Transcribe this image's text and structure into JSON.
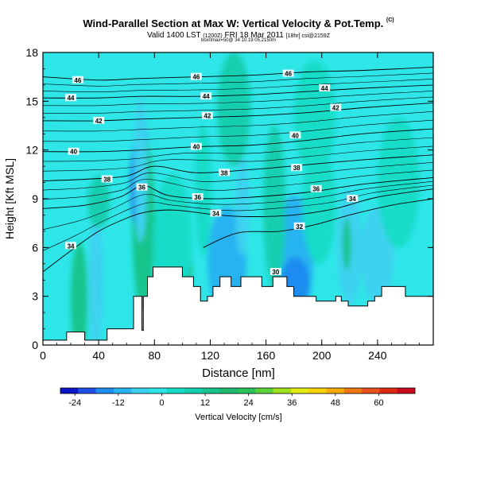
{
  "header": {
    "title": "Wind-Parallel Section at Max W: Vertical Velocity & Pot.Temp.",
    "title_mark": "(C)",
    "valid_prefix": "Valid 1400 LST",
    "valid_utc": "(1200Z)",
    "valid_date": "FRI 18 Mar 2011",
    "valid_suffix": "[18hr] csi@2159Z",
    "meta_line": "box0max=50@ 34 10.19 05,2150m"
  },
  "chart_data": {
    "type": "heatmap",
    "xlabel": "Distance [nm]",
    "ylabel": "Height [Kft MSL]",
    "xlim": [
      0,
      280
    ],
    "ylim": [
      0,
      18
    ],
    "x_ticks": [
      0,
      40,
      80,
      120,
      160,
      200,
      240
    ],
    "y_ticks": [
      0,
      3,
      6,
      9,
      12,
      15,
      18
    ],
    "colorbar": {
      "label": "Vertical Velocity [cm/s]",
      "ticks": [
        -24,
        -12,
        0,
        12,
        24,
        36,
        48,
        60
      ],
      "range": [
        -28,
        70
      ],
      "colors": [
        "#0a14c8",
        "#1e50e6",
        "#1e8cf0",
        "#28b4f0",
        "#3cd2ef",
        "#2ee6e8",
        "#14dcc8",
        "#14cfb0",
        "#19c48c",
        "#1eb96e",
        "#28c35a",
        "#5ad23c",
        "#a0e11e",
        "#e1ec14",
        "#f7d20a",
        "#f7aa0a",
        "#f07814",
        "#e8501e",
        "#dc2814",
        "#c80a1e"
      ]
    },
    "terrain": [
      [
        0,
        0.3
      ],
      [
        17,
        0.3
      ],
      [
        17,
        0.8
      ],
      [
        30,
        0.8
      ],
      [
        30,
        0.3
      ],
      [
        46,
        0.3
      ],
      [
        46,
        1.0
      ],
      [
        65,
        1.0
      ],
      [
        65,
        3.0
      ],
      [
        71,
        3.0
      ],
      [
        71,
        0.9
      ],
      [
        72,
        0.9
      ],
      [
        72,
        3.0
      ],
      [
        75,
        3.0
      ],
      [
        75,
        4.2
      ],
      [
        79,
        4.2
      ],
      [
        79,
        4.8
      ],
      [
        100,
        4.8
      ],
      [
        100,
        4.2
      ],
      [
        108,
        4.2
      ],
      [
        108,
        3.6
      ],
      [
        113,
        3.6
      ],
      [
        113,
        2.7
      ],
      [
        118,
        2.7
      ],
      [
        118,
        3.0
      ],
      [
        122,
        3.0
      ],
      [
        122,
        3.6
      ],
      [
        127,
        3.6
      ],
      [
        127,
        4.2
      ],
      [
        135,
        4.2
      ],
      [
        135,
        3.6
      ],
      [
        142,
        3.6
      ],
      [
        142,
        4.2
      ],
      [
        157,
        4.2
      ],
      [
        157,
        3.6
      ],
      [
        165,
        3.6
      ],
      [
        165,
        4.2
      ],
      [
        175,
        4.2
      ],
      [
        175,
        3.6
      ],
      [
        180,
        3.6
      ],
      [
        180,
        3.0
      ],
      [
        196,
        3.0
      ],
      [
        196,
        2.7
      ],
      [
        210,
        2.7
      ],
      [
        210,
        3.0
      ],
      [
        214,
        3.0
      ],
      [
        214,
        2.7
      ],
      [
        219,
        2.7
      ],
      [
        219,
        2.4
      ],
      [
        233,
        2.4
      ],
      [
        233,
        2.7
      ],
      [
        238,
        2.7
      ],
      [
        238,
        3.0
      ],
      [
        243,
        3.0
      ],
      [
        243,
        3.6
      ],
      [
        260,
        3.6
      ],
      [
        260,
        3.0
      ],
      [
        280,
        3.0
      ]
    ],
    "features": [
      {
        "x": 72,
        "y": 7.0,
        "rx": 3,
        "ry": 3.8,
        "value": 62
      },
      {
        "x": 72,
        "y": 6.4,
        "rx": 5,
        "ry": 4.6,
        "value": 40
      },
      {
        "x": 72,
        "y": 7.5,
        "rx": 8,
        "ry": 5.5,
        "value": 14
      },
      {
        "x": 67,
        "y": 10.0,
        "rx": 4,
        "ry": 2.6,
        "value": -20
      },
      {
        "x": 72,
        "y": 12.7,
        "rx": 3,
        "ry": 1.2,
        "value": -18
      },
      {
        "x": 70,
        "y": 10.8,
        "rx": 5,
        "ry": 4.5,
        "value": -8
      },
      {
        "x": 26,
        "y": 3.2,
        "rx": 3,
        "ry": 2.6,
        "value": 40
      },
      {
        "x": 26,
        "y": 2.8,
        "rx": 6,
        "ry": 3.5,
        "value": 14
      },
      {
        "x": 38,
        "y": 4.0,
        "rx": 5,
        "ry": 4.5,
        "value": -4
      },
      {
        "x": 132,
        "y": 5.2,
        "rx": 14,
        "ry": 3.3,
        "value": -12
      },
      {
        "x": 143,
        "y": 8.5,
        "rx": 5,
        "ry": 3.0,
        "value": -8
      },
      {
        "x": 104,
        "y": 4.6,
        "rx": 3,
        "ry": 1.2,
        "value": 18
      },
      {
        "x": 93,
        "y": 6.5,
        "rx": 14,
        "ry": 4.0,
        "value": 6
      },
      {
        "x": 180,
        "y": 5.2,
        "rx": 14,
        "ry": 4.0,
        "value": -10
      },
      {
        "x": 181,
        "y": 3.9,
        "rx": 10,
        "ry": 1.5,
        "value": -16
      },
      {
        "x": 166,
        "y": 8.5,
        "rx": 8,
        "ry": 5.0,
        "value": 8
      },
      {
        "x": 198,
        "y": 8.5,
        "rx": 12,
        "ry": 3.5,
        "value": 6
      },
      {
        "x": 220,
        "y": 6.0,
        "rx": 9,
        "ry": 3.5,
        "value": -6
      },
      {
        "x": 240,
        "y": 5.5,
        "rx": 12,
        "ry": 3.0,
        "value": -4
      },
      {
        "x": 218,
        "y": 6.2,
        "rx": 3,
        "ry": 1.6,
        "value": 14
      },
      {
        "x": 137,
        "y": 14.5,
        "rx": 12,
        "ry": 3.5,
        "value": 8
      },
      {
        "x": 195,
        "y": 14.0,
        "rx": 15,
        "ry": 3.5,
        "value": 6
      },
      {
        "x": 115,
        "y": 9.5,
        "rx": 6,
        "ry": 4.0,
        "value": 6
      },
      {
        "x": 255,
        "y": 10.0,
        "rx": 15,
        "ry": 4.0,
        "value": 3
      },
      {
        "x": 40,
        "y": 8.8,
        "rx": 8,
        "ry": 1.6,
        "value": 8
      }
    ],
    "isentropes": [
      {
        "value": 46,
        "points": [
          [
            0,
            16.5
          ],
          [
            40,
            16.3
          ],
          [
            70,
            16.4
          ],
          [
            110,
            16.5
          ],
          [
            150,
            16.6
          ],
          [
            190,
            16.8
          ],
          [
            230,
            16.9
          ],
          [
            280,
            17.1
          ]
        ]
      },
      {
        "value": 44,
        "points": [
          [
            0,
            15.2
          ],
          [
            40,
            15.2
          ],
          [
            70,
            15.3
          ],
          [
            110,
            15.3
          ],
          [
            150,
            15.4
          ],
          [
            190,
            15.6
          ],
          [
            230,
            15.8
          ],
          [
            280,
            16.0
          ]
        ]
      },
      {
        "value": 42,
        "points": [
          [
            0,
            13.8
          ],
          [
            40,
            13.8
          ],
          [
            70,
            13.9
          ],
          [
            110,
            14.0
          ],
          [
            150,
            14.1
          ],
          [
            190,
            14.3
          ],
          [
            230,
            14.6
          ],
          [
            280,
            14.9
          ]
        ]
      },
      {
        "value": 40,
        "points": [
          [
            0,
            11.9
          ],
          [
            40,
            11.9
          ],
          [
            70,
            12.0
          ],
          [
            110,
            12.2
          ],
          [
            150,
            12.3
          ],
          [
            190,
            12.6
          ],
          [
            230,
            13.0
          ],
          [
            280,
            13.3
          ]
        ]
      },
      {
        "value": 38,
        "points": [
          [
            0,
            10.1
          ],
          [
            30,
            10.2
          ],
          [
            60,
            10.4
          ],
          [
            80,
            11.0
          ],
          [
            110,
            10.6
          ],
          [
            150,
            10.8
          ],
          [
            190,
            11.1
          ],
          [
            230,
            11.4
          ],
          [
            280,
            11.7
          ]
        ]
      },
      {
        "value": 36,
        "points": [
          [
            0,
            8.4
          ],
          [
            30,
            8.6
          ],
          [
            55,
            9.1
          ],
          [
            72,
            9.8
          ],
          [
            90,
            9.2
          ],
          [
            120,
            9.0
          ],
          [
            150,
            9.1
          ],
          [
            190,
            9.4
          ],
          [
            230,
            9.9
          ],
          [
            280,
            10.3
          ]
        ]
      },
      {
        "value": 34,
        "points": [
          [
            0,
            4.5
          ],
          [
            20,
            5.8
          ],
          [
            40,
            7.0
          ],
          [
            60,
            7.8
          ],
          [
            75,
            8.2
          ],
          [
            95,
            8.3
          ],
          [
            125,
            8.0
          ],
          [
            150,
            7.9
          ],
          [
            180,
            8.0
          ],
          [
            210,
            8.4
          ],
          [
            240,
            9.1
          ],
          [
            280,
            9.6
          ]
        ]
      },
      {
        "value": 32,
        "points": [
          [
            115,
            6.0
          ],
          [
            140,
            6.9
          ],
          [
            170,
            7.0
          ],
          [
            195,
            7.4
          ],
          [
            220,
            8.0
          ],
          [
            250,
            8.6
          ],
          [
            280,
            9.0
          ]
        ]
      }
    ],
    "isentrope_labels": [
      {
        "x": 25,
        "y": 16.3,
        "text": "46"
      },
      {
        "x": 110,
        "y": 16.5,
        "text": "46"
      },
      {
        "x": 176,
        "y": 16.7,
        "text": "46"
      },
      {
        "x": 20,
        "y": 15.2,
        "text": "44"
      },
      {
        "x": 117,
        "y": 15.3,
        "text": "44"
      },
      {
        "x": 202,
        "y": 15.8,
        "text": "44"
      },
      {
        "x": 40,
        "y": 13.8,
        "text": "42"
      },
      {
        "x": 118,
        "y": 14.1,
        "text": "42"
      },
      {
        "x": 210,
        "y": 14.6,
        "text": "42"
      },
      {
        "x": 22,
        "y": 11.9,
        "text": "40"
      },
      {
        "x": 110,
        "y": 12.2,
        "text": "40"
      },
      {
        "x": 181,
        "y": 12.9,
        "text": "40"
      },
      {
        "x": 46,
        "y": 10.2,
        "text": "38"
      },
      {
        "x": 130,
        "y": 10.6,
        "text": "38"
      },
      {
        "x": 182,
        "y": 10.9,
        "text": "38"
      },
      {
        "x": 71,
        "y": 9.7,
        "text": "36"
      },
      {
        "x": 111,
        "y": 9.1,
        "text": "36"
      },
      {
        "x": 196,
        "y": 9.6,
        "text": "36"
      },
      {
        "x": 124,
        "y": 8.1,
        "text": "34"
      },
      {
        "x": 20,
        "y": 6.1,
        "text": "34"
      },
      {
        "x": 222,
        "y": 9.0,
        "text": "34"
      },
      {
        "x": 184,
        "y": 7.3,
        "text": "32"
      },
      {
        "x": 167,
        "y": 4.5,
        "text": "30"
      }
    ]
  }
}
